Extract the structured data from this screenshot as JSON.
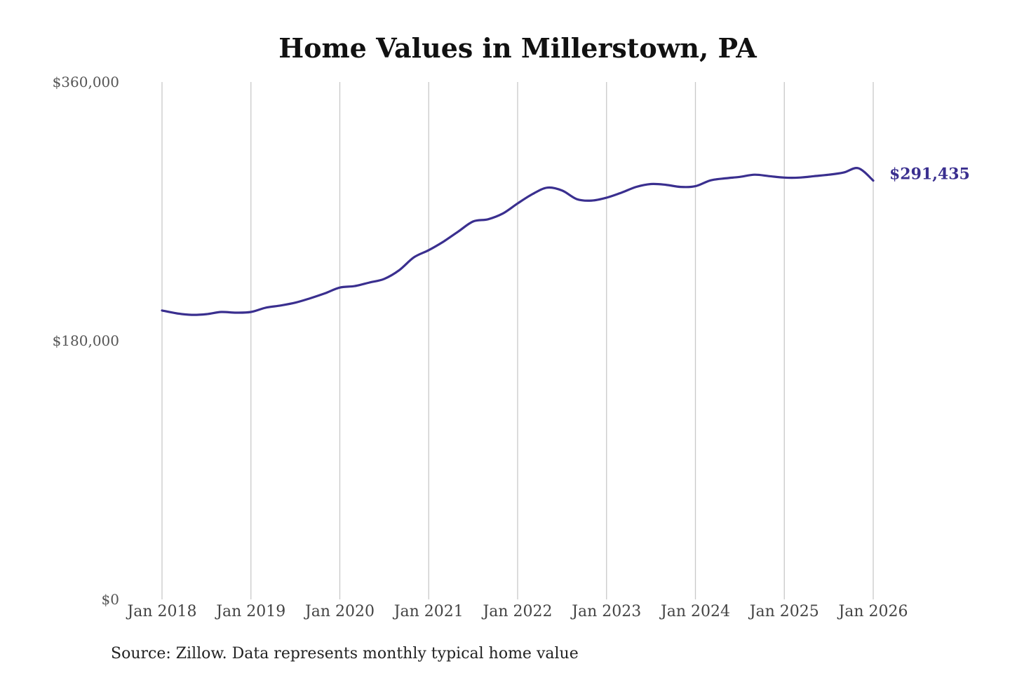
{
  "chart_data": {
    "type": "line",
    "title": "Home Values in Millerstown, PA",
    "xlabel": "",
    "ylabel": "",
    "ylim": [
      0,
      360000
    ],
    "y_ticks": [
      {
        "value": 0,
        "label": "$0"
      },
      {
        "value": 180000,
        "label": "$180,000"
      },
      {
        "value": 360000,
        "label": "$360,000"
      }
    ],
    "x_ticks": [
      {
        "value": "2018-01",
        "label": "Jan 2018"
      },
      {
        "value": "2019-01",
        "label": "Jan 2019"
      },
      {
        "value": "2020-01",
        "label": "Jan 2020"
      },
      {
        "value": "2021-01",
        "label": "Jan 2021"
      },
      {
        "value": "2022-01",
        "label": "Jan 2022"
      },
      {
        "value": "2023-01",
        "label": "Jan 2023"
      },
      {
        "value": "2024-01",
        "label": "Jan 2024"
      },
      {
        "value": "2025-01",
        "label": "Jan 2025"
      },
      {
        "value": "2026-01",
        "label": "Jan 2026"
      }
    ],
    "grid": "vertical",
    "line_color": "#3a2f8f",
    "end_label": "$291,435",
    "source": "Source: Zillow. Data represents monthly typical home value",
    "series": [
      {
        "points": [
          [
            "2018-01",
            201000
          ],
          [
            "2018-03",
            199000
          ],
          [
            "2018-05",
            198000
          ],
          [
            "2018-07",
            198500
          ],
          [
            "2018-09",
            200000
          ],
          [
            "2018-11",
            199500
          ],
          [
            "2019-01",
            200000
          ],
          [
            "2019-03",
            203000
          ],
          [
            "2019-05",
            204500
          ],
          [
            "2019-07",
            206500
          ],
          [
            "2019-09",
            209500
          ],
          [
            "2019-11",
            213000
          ],
          [
            "2020-01",
            217000
          ],
          [
            "2020-03",
            218000
          ],
          [
            "2020-05",
            220500
          ],
          [
            "2020-07",
            223000
          ],
          [
            "2020-09",
            229000
          ],
          [
            "2020-11",
            238000
          ],
          [
            "2021-01",
            243000
          ],
          [
            "2021-03",
            249000
          ],
          [
            "2021-05",
            256000
          ],
          [
            "2021-07",
            263000
          ],
          [
            "2021-09",
            264500
          ],
          [
            "2021-11",
            268500
          ],
          [
            "2022-01",
            275500
          ],
          [
            "2022-03",
            282000
          ],
          [
            "2022-05",
            286500
          ],
          [
            "2022-07",
            284500
          ],
          [
            "2022-09",
            278500
          ],
          [
            "2022-11",
            277500
          ],
          [
            "2023-01",
            279500
          ],
          [
            "2023-03",
            283000
          ],
          [
            "2023-05",
            287000
          ],
          [
            "2023-07",
            289000
          ],
          [
            "2023-09",
            288500
          ],
          [
            "2023-11",
            287000
          ],
          [
            "2024-01",
            287500
          ],
          [
            "2024-03",
            291500
          ],
          [
            "2024-05",
            293000
          ],
          [
            "2024-07",
            294000
          ],
          [
            "2024-09",
            295500
          ],
          [
            "2024-11",
            294500
          ],
          [
            "2025-01",
            293500
          ],
          [
            "2025-03",
            293500
          ],
          [
            "2025-05",
            294500
          ],
          [
            "2025-07",
            295500
          ],
          [
            "2025-09",
            297000
          ],
          [
            "2025-11",
            300000
          ],
          [
            "2026-01",
            291435
          ]
        ]
      }
    ]
  }
}
